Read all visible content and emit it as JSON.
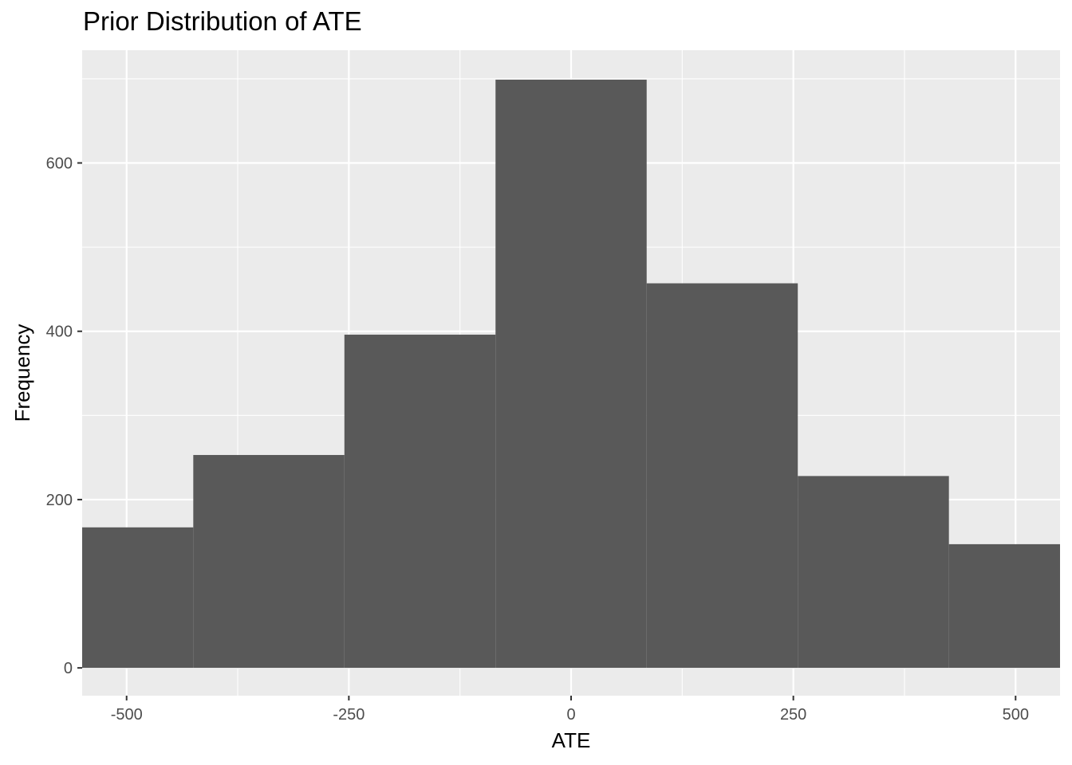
{
  "chart_data": {
    "type": "bar",
    "title": "Prior Distribution of ATE",
    "xlabel": "ATE",
    "ylabel": "Frequency",
    "bins": [
      {
        "x0": -594,
        "x1": -425,
        "count": 167
      },
      {
        "x0": -425,
        "x1": -255,
        "count": 253
      },
      {
        "x0": -255,
        "x1": -85,
        "count": 396
      },
      {
        "x0": -85,
        "x1": 85,
        "count": 699
      },
      {
        "x0": 85,
        "x1": 255,
        "count": 457
      },
      {
        "x0": 255,
        "x1": 425,
        "count": 228
      },
      {
        "x0": 425,
        "x1": 594,
        "count": 147
      }
    ],
    "xlim": [
      -550,
      550
    ],
    "ylim": [
      -33,
      734
    ],
    "x_ticks": [
      -500,
      -250,
      0,
      250,
      500
    ],
    "x_tick_labels": [
      "-500",
      "-250",
      "0",
      "250",
      "500"
    ],
    "y_ticks": [
      0,
      200,
      400,
      600
    ],
    "y_tick_labels": [
      "0",
      "200",
      "400",
      "600"
    ],
    "grid": true,
    "colors": {
      "panel_background": "#ebebeb",
      "grid_line": "#ffffff",
      "bar_fill": "#595959",
      "tick_label": "#4d4d4d",
      "tick_mark": "#333333"
    }
  }
}
